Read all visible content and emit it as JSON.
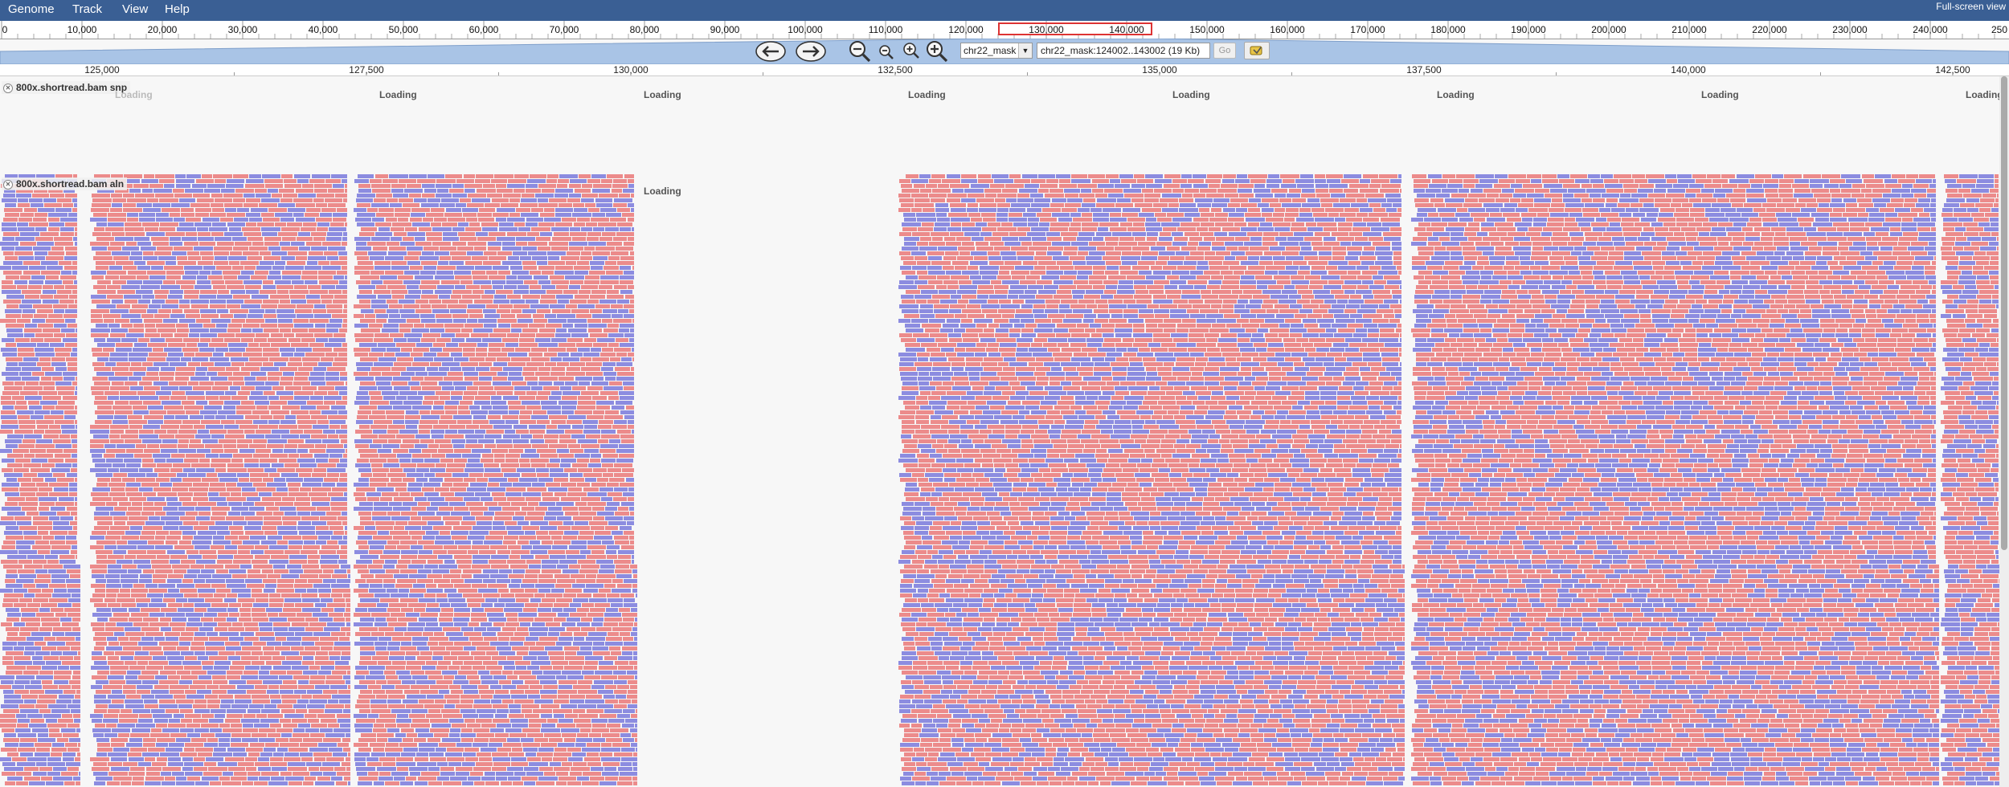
{
  "menu": {
    "items": [
      {
        "id": "genome",
        "label": "Genome"
      },
      {
        "id": "track",
        "label": "Track"
      },
      {
        "id": "view",
        "label": "View"
      },
      {
        "id": "help",
        "label": "Help"
      }
    ],
    "fullscreen_label": "Full-screen view"
  },
  "overview": {
    "labels": [
      "0",
      "10,000",
      "20,000",
      "30,000",
      "40,000",
      "50,000",
      "60,000",
      "70,000",
      "80,000",
      "90,000",
      "100,000",
      "110,000",
      "120,000",
      "130,000",
      "140,000",
      "150,000",
      "160,000",
      "170,000",
      "180,000",
      "190,000",
      "200,000",
      "210,000",
      "220,000",
      "230,000",
      "240,000",
      "250"
    ],
    "range_start": 0,
    "range_end": 250000,
    "view_start": 124002,
    "view_end": 143002,
    "box_color": "#dd3333"
  },
  "navigation": {
    "reference": "chr22_mask",
    "location": "chr22_mask:124002..143002 (19 Kb)",
    "go_label": "Go",
    "icons": [
      "pan-left-icon",
      "pan-right-icon",
      "zoom-out-large-icon",
      "zoom-out-small-icon",
      "zoom-in-small-icon",
      "zoom-in-large-icon",
      "highlight-icon"
    ]
  },
  "detail_ruler": {
    "labels": [
      "125,000",
      "127,500",
      "130,000",
      "132,500",
      "135,000",
      "137,500",
      "140,000",
      "142,500"
    ]
  },
  "tracks": [
    {
      "id": "snp",
      "label": "800x.shortread.bam snp",
      "loading_labels": [
        "Loading",
        "Loading",
        "Loading",
        "Loading",
        "Loading",
        "Loading",
        "Loading",
        "Loading"
      ]
    },
    {
      "id": "aln",
      "label": "800x.shortread.bam aln",
      "loading_labels": [
        "Loading"
      ]
    }
  ],
  "colors": {
    "forward_read": "#ec8b8b",
    "reverse_read": "#8c8ce0",
    "menubar": "#3a5f94"
  }
}
